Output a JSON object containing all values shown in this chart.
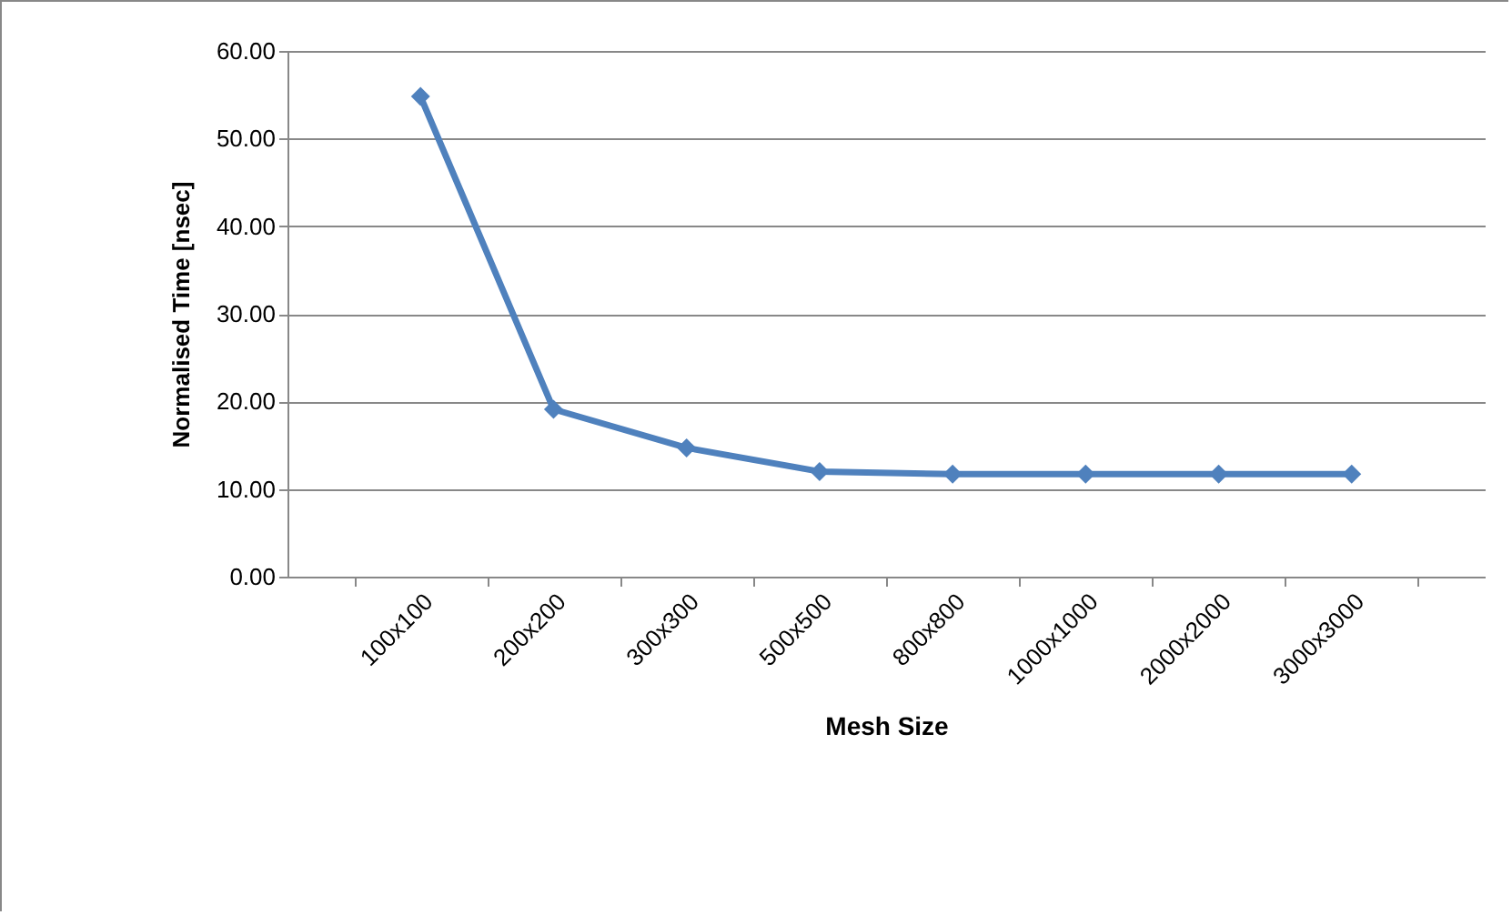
{
  "chart_data": {
    "type": "line",
    "xlabel": "Mesh Size",
    "ylabel": "Normalised Time [nsec]",
    "categories": [
      "100x100",
      "200x200",
      "300x300",
      "500x500",
      "800x800",
      "1000x1000",
      "2000x2000",
      "3000x3000"
    ],
    "series": [
      {
        "color": "#4f81bd",
        "values": [
          54.8,
          19.1,
          14.7,
          12.0,
          11.7,
          11.7,
          11.7,
          11.7
        ]
      }
    ],
    "ylim": [
      0,
      60
    ],
    "yticks": [
      {
        "value": 0,
        "label": "0.00"
      },
      {
        "value": 10,
        "label": "10.00"
      },
      {
        "value": 20,
        "label": "20.00"
      },
      {
        "value": 30,
        "label": "30.00"
      },
      {
        "value": 40,
        "label": "40.00"
      },
      {
        "value": 50,
        "label": "50.00"
      },
      {
        "value": 60,
        "label": "60.00"
      }
    ],
    "grid": "y",
    "legend": false,
    "marker": "diamond",
    "line_style": "solid"
  }
}
